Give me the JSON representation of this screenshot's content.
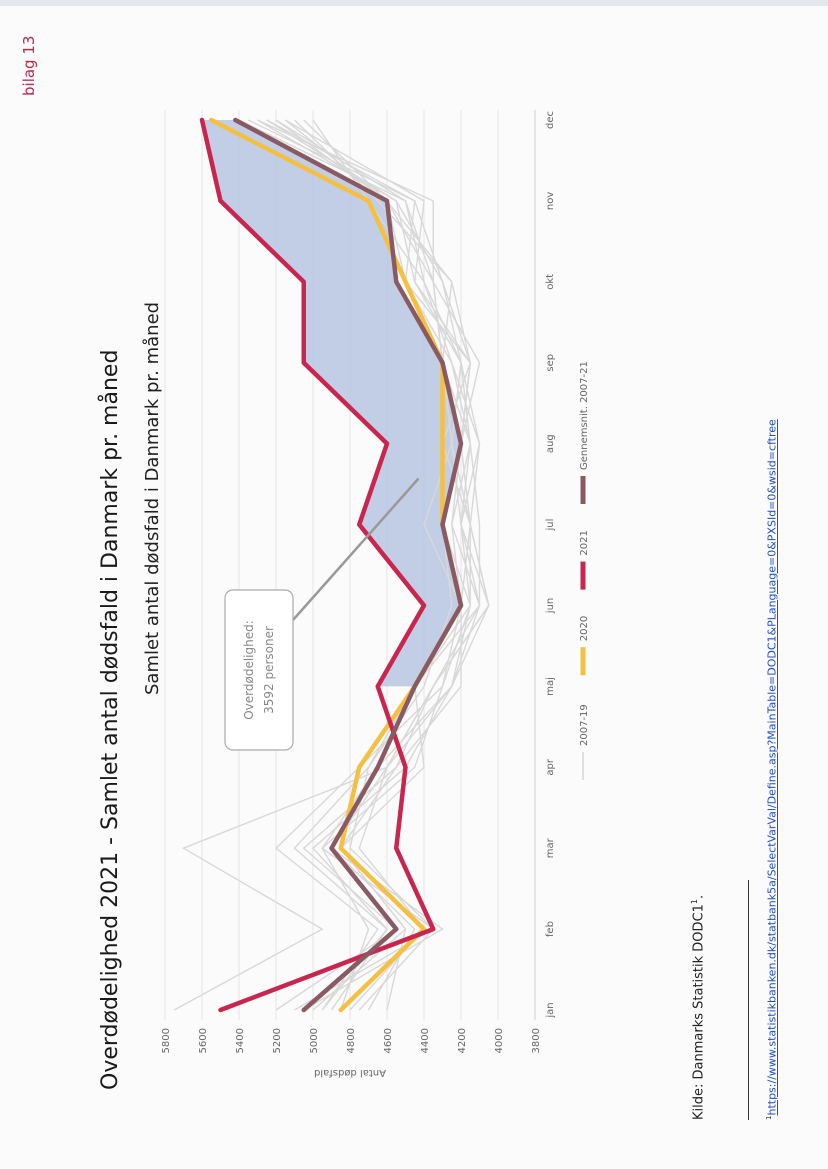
{
  "page": {
    "tag": "bilag 13",
    "heading": "Overdødelighed 2021 - Samlet antal dødsfald i Danmark pr. måned",
    "source_text": "Kilde: Danmarks Statistik DODC1",
    "source_sup": "1",
    "footnote_sup": "1",
    "footnote_link": "https://www.statistikbanken.dk/statbank5a/SelectVarVal/Define.asp?MainTable=DODC1&PLanguage=0&PXSId=0&wsid=cftree"
  },
  "chart_data": {
    "type": "line",
    "title": "Samlet antal dødsfald i Danmark pr. måned",
    "ylabel": "Antal dødsfald",
    "xlabel": "",
    "categories": [
      "jan",
      "feb",
      "mar",
      "apr",
      "maj",
      "jun",
      "jul",
      "aug",
      "sep",
      "okt",
      "nov",
      "dec"
    ],
    "ylim": [
      3800,
      5800
    ],
    "yticks": [
      3800,
      4000,
      4200,
      4400,
      4600,
      4800,
      5000,
      5200,
      5400,
      5600,
      5800
    ],
    "grid": true,
    "legend_position": "bottom",
    "shaded_region": {
      "between": [
        "2021",
        "Gennemsnit. 2007-21"
      ],
      "from": "maj",
      "to": "dec",
      "color": "#b4c2e0"
    },
    "annotation": {
      "lines": [
        "Overdødelighed:",
        "3592 personer"
      ]
    },
    "series": [
      {
        "name": "2007-19",
        "color": "#d8d8d8",
        "values": [
          [
            5750,
            4950,
            5700,
            4600,
            4250,
            4050,
            4150,
            4200,
            4150,
            4250,
            4600,
            5050
          ],
          [
            4950,
            4600,
            5100,
            4700,
            4450,
            4200,
            4400,
            4250,
            4300,
            4350,
            4350,
            5300
          ],
          [
            4600,
            4500,
            4850,
            4550,
            4350,
            4100,
            4250,
            4150,
            4250,
            4400,
            4500,
            5200
          ],
          [
            5050,
            4300,
            4900,
            4600,
            4350,
            4050,
            4150,
            4100,
            4200,
            4450,
            4400,
            5150
          ],
          [
            4850,
            4700,
            4950,
            4450,
            4300,
            4150,
            4150,
            4300,
            4150,
            4300,
            4550,
            5250
          ],
          [
            5100,
            4350,
            4800,
            4700,
            4400,
            4250,
            4300,
            4200,
            4150,
            4500,
            4450,
            5350
          ],
          [
            4900,
            4600,
            5000,
            4500,
            4250,
            4150,
            4200,
            4250,
            4300,
            4250,
            4650,
            5100
          ],
          [
            4700,
            4450,
            4900,
            4650,
            4450,
            4100,
            4100,
            4150,
            4200,
            4400,
            4700,
            5000
          ],
          [
            5200,
            4550,
            5050,
            4550,
            4200,
            4200,
            4250,
            4200,
            4100,
            4350,
            4500,
            5400
          ],
          [
            4800,
            4400,
            4750,
            4600,
            4350,
            4050,
            4200,
            4100,
            4250,
            4500,
            4600,
            5200
          ],
          [
            4950,
            4650,
            5200,
            4750,
            4300,
            4200,
            4150,
            4250,
            4200,
            4300,
            4450,
            5250
          ],
          [
            5000,
            4500,
            4850,
            4400,
            4450,
            4150,
            4300,
            4200,
            4150,
            4450,
            4550,
            5300
          ],
          [
            4750,
            4350,
            4950,
            4650,
            4250,
            4100,
            4200,
            4150,
            4300,
            4350,
            4600,
            5150
          ]
        ]
      },
      {
        "name": "2020",
        "color": "#f5c042",
        "values": [
          4850,
          4400,
          4850,
          4750,
          4450,
          4200,
          4300,
          4300,
          4300,
          4500,
          4700,
          5550
        ]
      },
      {
        "name": "2021",
        "color": "#c8254f",
        "values": [
          5500,
          4350,
          4550,
          4500,
          4650,
          4400,
          4750,
          4600,
          5050,
          5050,
          5500,
          5600
        ]
      },
      {
        "name": "Gennemsnit. 2007-21",
        "color": "#8a5a62",
        "values": [
          5050,
          4550,
          4900,
          4650,
          4450,
          4200,
          4300,
          4200,
          4300,
          4550,
          4600,
          5420
        ]
      }
    ]
  }
}
